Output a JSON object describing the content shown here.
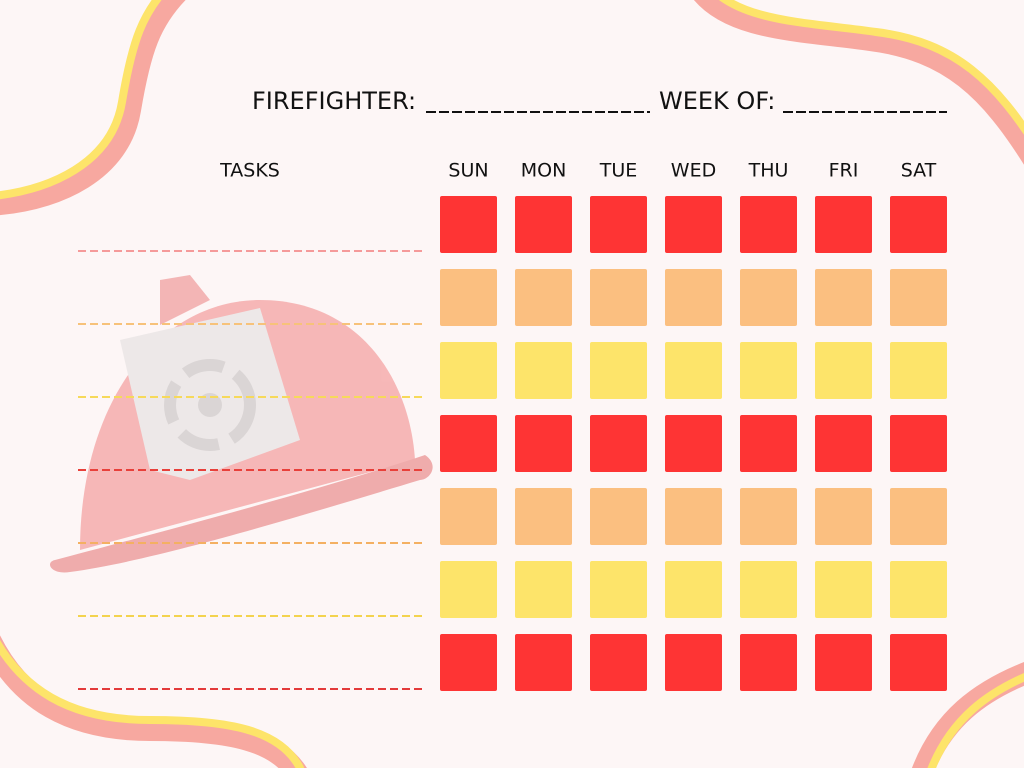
{
  "header": {
    "name_label": "FIREFIGHTER:",
    "week_label": "WEEK OF:"
  },
  "tasks_label": "TASKS",
  "days": [
    "SUN",
    "MON",
    "TUE",
    "WED",
    "THU",
    "FRI",
    "SAT"
  ],
  "rows": [
    {
      "color": "#fe3434",
      "line_color": "#f59a9a"
    },
    {
      "color": "#fbbf80",
      "line_color": "#f7c27a"
    },
    {
      "color": "#fde46a",
      "line_color": "#f6d95a"
    },
    {
      "color": "#fe3434",
      "line_color": "#e8403a"
    },
    {
      "color": "#fbbf80",
      "line_color": "#f4b062"
    },
    {
      "color": "#fde46a",
      "line_color": "#f3d34e"
    },
    {
      "color": "#fe3434",
      "line_color": "#e33a3a"
    }
  ]
}
